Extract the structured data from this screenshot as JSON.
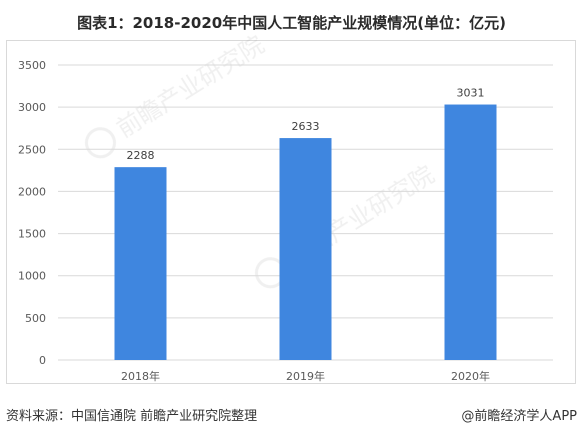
{
  "chart_data": {
    "type": "bar",
    "title": "图表1：2018-2020年中国人工智能产业规模情况(单位：亿元)",
    "categories": [
      "2018年",
      "2019年",
      "2020年"
    ],
    "values": [
      2288,
      2633,
      3031
    ],
    "yticks": [
      0,
      500,
      1000,
      1500,
      2000,
      2500,
      3000,
      3500
    ],
    "ylim": [
      0,
      3500
    ],
    "grid": true,
    "bar_color": "#3f86df",
    "data_labels": true
  },
  "footer": {
    "source": "资料来源：中国信通院 前瞻产业研究院整理",
    "credit": "@前瞻经济学人APP"
  },
  "watermark": {
    "text": "前瞻产业研究院",
    "icon": "qianzhan-logo-icon"
  },
  "colors": {
    "grid": "#d9d9d9",
    "axis_text": "#595959",
    "label_text": "#404040"
  }
}
